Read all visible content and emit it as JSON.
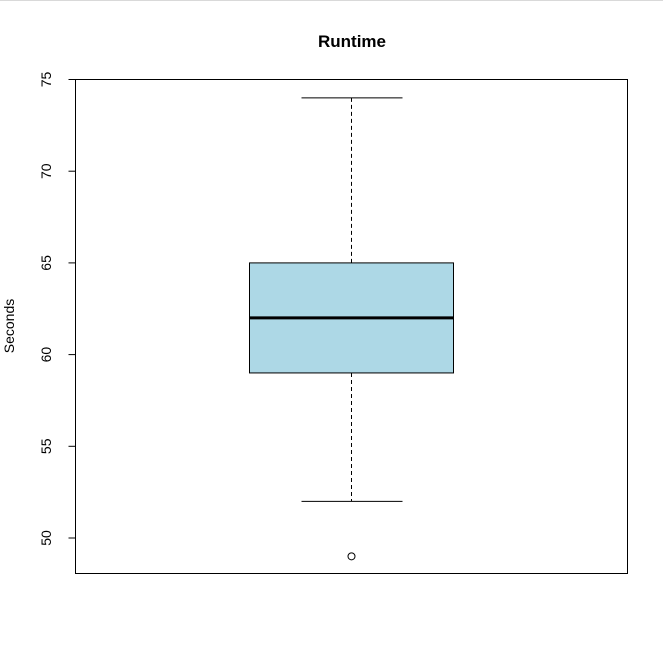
{
  "chart_data": {
    "type": "boxplot",
    "title": "Runtime",
    "xlabel": "",
    "ylabel": "Seconds",
    "ylim": [
      48,
      75
    ],
    "yticks": [
      50,
      55,
      60,
      65,
      70,
      75
    ],
    "ytick_labels": [
      "50",
      "55",
      "60",
      "65",
      "70",
      "75"
    ],
    "grid": false,
    "box": {
      "whisker_low": 52,
      "q1": 59,
      "median": 62,
      "q3": 65,
      "whisker_high": 74,
      "outliers": [
        49
      ]
    },
    "colors": {
      "box_fill": "#add8e6",
      "stroke": "#000000"
    }
  }
}
